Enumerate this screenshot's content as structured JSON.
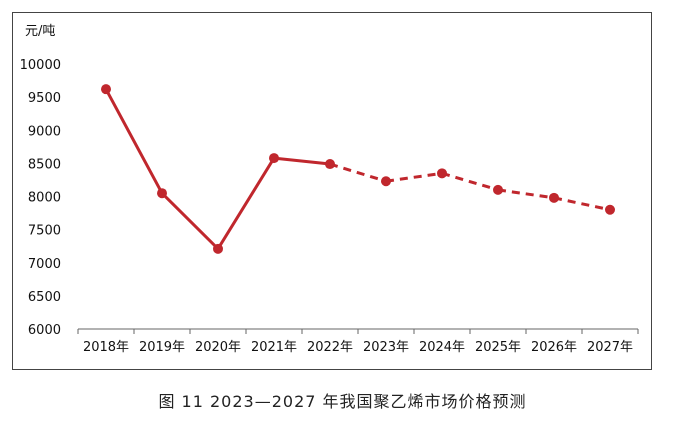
{
  "chart_data": {
    "type": "line",
    "ylabel": "元/吨",
    "categories": [
      "2018年",
      "2019年",
      "2020年",
      "2021年",
      "2022年",
      "2023年",
      "2024年",
      "2025年",
      "2026年",
      "2027年"
    ],
    "values": [
      9620,
      8050,
      7210,
      8580,
      8490,
      8230,
      8350,
      8100,
      7980,
      7800
    ],
    "solid_until_index": 4,
    "ylim": [
      6000,
      10000
    ],
    "yticks": [
      "6000",
      "6500",
      "7000",
      "7500",
      "8000",
      "8500",
      "9000",
      "9500",
      "10000"
    ],
    "grid": false,
    "color": "#c0272d"
  },
  "caption": "图 11  2023—2027 年我国聚乙烯市场价格预测"
}
